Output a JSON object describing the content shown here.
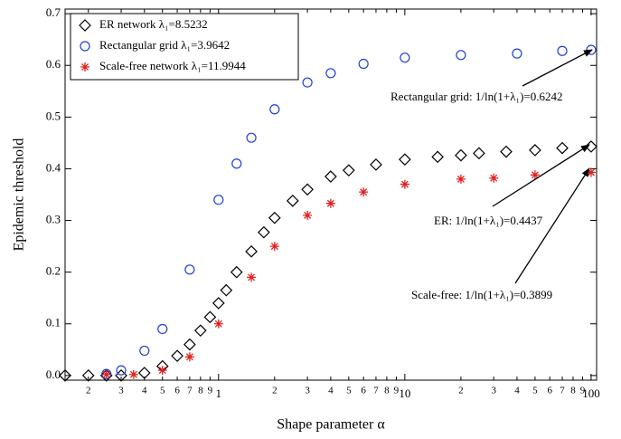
{
  "chart_data": {
    "type": "scatter",
    "xlabel": "Shape parameter α",
    "ylabel": "Epidemic threshold",
    "xscale": "log",
    "xlim": [
      0.15,
      107
    ],
    "ylim": [
      -0.009,
      0.709
    ],
    "xticks": [
      {
        "value": 0.2,
        "label": "2"
      },
      {
        "value": 0.3,
        "label": "3"
      },
      {
        "value": 0.4,
        "label": "4"
      },
      {
        "value": 0.5,
        "label": "5"
      },
      {
        "value": 0.6,
        "label": "6"
      },
      {
        "value": 0.7,
        "label": "7"
      },
      {
        "value": 0.8,
        "label": "8"
      },
      {
        "value": 0.9,
        "label": "9"
      },
      1,
      {
        "value": 2,
        "label": "2"
      },
      {
        "value": 3,
        "label": "3"
      },
      {
        "value": 4,
        "label": "4"
      },
      {
        "value": 5,
        "label": "5"
      },
      {
        "value": 6,
        "label": "6"
      },
      {
        "value": 7,
        "label": "7"
      },
      {
        "value": 8,
        "label": "8"
      },
      {
        "value": 9,
        "label": "9"
      },
      10,
      {
        "value": 20,
        "label": "2"
      },
      {
        "value": 30,
        "label": "3"
      },
      {
        "value": 40,
        "label": "4"
      },
      {
        "value": 50,
        "label": "5"
      },
      {
        "value": 60,
        "label": "6"
      },
      {
        "value": 70,
        "label": "7"
      },
      {
        "value": 80,
        "label": "8"
      },
      {
        "value": 90,
        "label": "9"
      },
      100
    ],
    "yticks": [
      {
        "value": 0,
        "label": "0.0"
      },
      0.1,
      0.2,
      0.3,
      0.4,
      0.5,
      0.6,
      0.7
    ],
    "legend": "upper left",
    "series": [
      {
        "name": "ER network λ₁=8.5232",
        "color": "#000000",
        "marker": "diamond",
        "x": [
          0.15,
          0.2,
          0.25,
          0.3,
          0.4,
          0.5,
          0.6,
          0.7,
          0.8,
          0.9,
          1,
          1.1,
          1.25,
          1.5,
          1.75,
          2,
          2.5,
          3,
          4,
          5,
          7,
          10,
          15,
          20,
          25,
          35,
          50,
          70,
          100
        ],
        "values": [
          0,
          0,
          0,
          0,
          0.005,
          0.018,
          0.038,
          0.06,
          0.087,
          0.113,
          0.14,
          0.165,
          0.2,
          0.24,
          0.277,
          0.305,
          0.338,
          0.36,
          0.385,
          0.397,
          0.408,
          0.418,
          0.423,
          0.426,
          0.43,
          0.433,
          0.436,
          0.44,
          0.443
        ]
      },
      {
        "name": "Rectangular grid λ₁=3.9642",
        "color": "#1f3fd6",
        "marker": "circle",
        "x": [
          0.25,
          0.3,
          0.4,
          0.5,
          0.7,
          1,
          1.25,
          1.5,
          2,
          3,
          4,
          6,
          10,
          20,
          40,
          70,
          100
        ],
        "values": [
          0.003,
          0.01,
          0.048,
          0.09,
          0.205,
          0.34,
          0.41,
          0.46,
          0.515,
          0.567,
          0.585,
          0.603,
          0.615,
          0.62,
          0.623,
          0.628,
          0.63
        ]
      },
      {
        "name": "Scale-free network λ₁=11.9944",
        "color": "#e02020",
        "marker": "star",
        "x": [
          0.25,
          0.35,
          0.5,
          0.7,
          1,
          1.5,
          2,
          3,
          4,
          6,
          10,
          20,
          30,
          50,
          100
        ],
        "values": [
          0.002,
          0.002,
          0.01,
          0.036,
          0.1,
          0.19,
          0.25,
          0.31,
          0.333,
          0.355,
          0.37,
          0.38,
          0.382,
          0.388,
          0.393
        ]
      }
    ],
    "annotations": [
      "Rectangular grid: 1/ln(1+λ₁)=0.6242",
      "ER: 1/ln(1+λ₁)=0.4437",
      "Scale-free: 1/ln(1+λ₁)=0.3899"
    ]
  }
}
